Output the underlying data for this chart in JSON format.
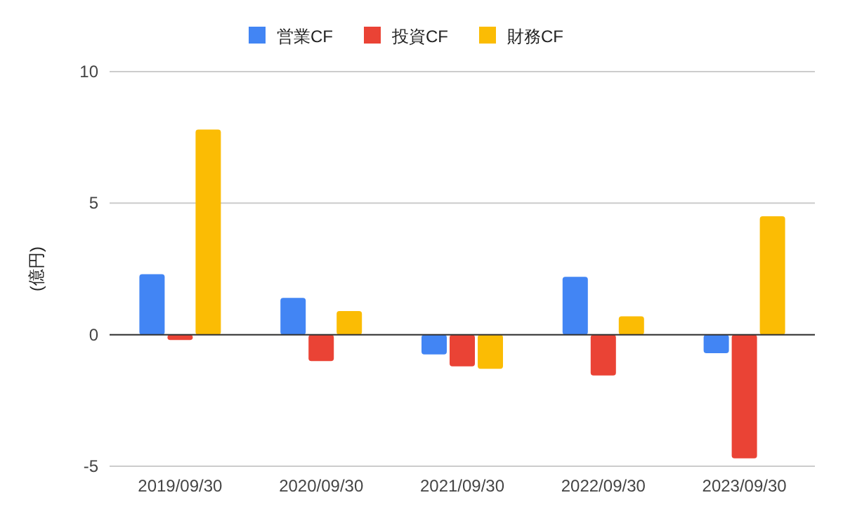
{
  "chart_data": {
    "type": "bar",
    "ylabel": "(億円)",
    "categories": [
      "2019/09/30",
      "2020/09/30",
      "2021/09/30",
      "2022/09/30",
      "2023/09/30"
    ],
    "series": [
      {
        "name": "営業CF",
        "color": "#4285f4",
        "values": [
          2.3,
          1.4,
          -0.75,
          2.2,
          -0.7
        ]
      },
      {
        "name": "投資CF",
        "color": "#ea4335",
        "values": [
          -0.2,
          -1.0,
          -1.2,
          -1.55,
          -4.7
        ]
      },
      {
        "name": "財務CF",
        "color": "#fbbc04",
        "values": [
          7.8,
          0.9,
          -1.3,
          0.7,
          4.5
        ]
      }
    ],
    "ylim": [
      -5,
      10
    ],
    "yticks": [
      -5,
      0,
      5,
      10
    ],
    "grid": "y",
    "legend": "top"
  }
}
